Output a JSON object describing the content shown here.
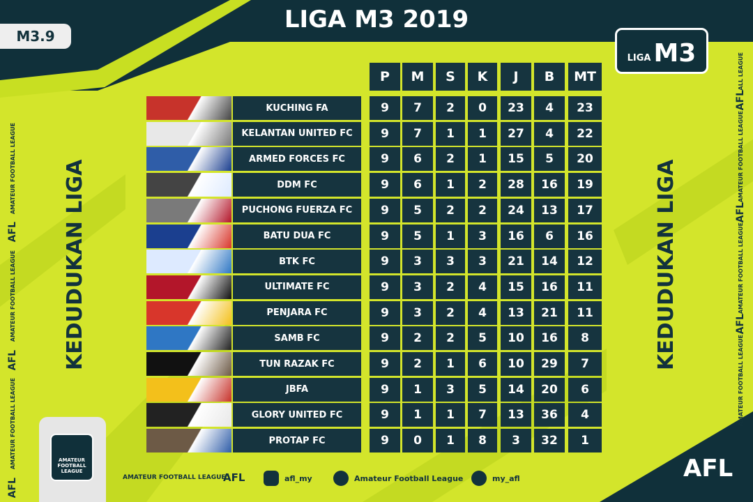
{
  "header": {
    "title": "LIGA M3 2019",
    "badge": "M3.9",
    "logo_small": "LIGA",
    "logo_big": "M3"
  },
  "side_title": "KEDUDUKAN LIGA",
  "left_strip": [
    "AFL",
    "AMATEUR FOOTBALL LEAGUE",
    "AFL",
    "AMATEUR FOOTBALL LEAGUE",
    "AFL",
    "AMATEUR FOOTBALL LEAGUE"
  ],
  "right_strip": [
    "AMATEUR FOOTBALL LEAGUE",
    "AFL",
    "AMATEUR FOOTBALL LEAGUE",
    "AFL",
    "AMATEUR FOOTBALL LEAGUE",
    "AFL",
    "ALL LEAGUE"
  ],
  "table": {
    "columns": [
      "P",
      "M",
      "S",
      "K",
      "J",
      "B",
      "MT"
    ],
    "rows": [
      {
        "team": "KUCHING FA",
        "stats": [
          9,
          7,
          2,
          0,
          23,
          4,
          23
        ]
      },
      {
        "team": "KELANTAN UNITED FC",
        "stats": [
          9,
          7,
          1,
          1,
          27,
          4,
          22
        ]
      },
      {
        "team": "ARMED FORCES FC",
        "stats": [
          9,
          6,
          2,
          1,
          15,
          5,
          20
        ]
      },
      {
        "team": "DDM FC",
        "stats": [
          9,
          6,
          1,
          2,
          28,
          16,
          19
        ]
      },
      {
        "team": "PUCHONG  FUERZA FC",
        "stats": [
          9,
          5,
          2,
          2,
          24,
          13,
          17
        ]
      },
      {
        "team": "BATU  DUA FC",
        "stats": [
          9,
          5,
          1,
          3,
          16,
          6,
          16
        ]
      },
      {
        "team": "BTK FC",
        "stats": [
          9,
          3,
          3,
          3,
          21,
          14,
          12
        ]
      },
      {
        "team": "ULTIMATE  FC",
        "stats": [
          9,
          3,
          2,
          4,
          15,
          16,
          11
        ]
      },
      {
        "team": "PENJARA FC",
        "stats": [
          9,
          3,
          2,
          4,
          13,
          21,
          11
        ]
      },
      {
        "team": "SAMB FC",
        "stats": [
          9,
          2,
          2,
          5,
          10,
          16,
          8
        ]
      },
      {
        "team": "TUN RAZAK FC",
        "stats": [
          9,
          2,
          1,
          6,
          10,
          29,
          7
        ]
      },
      {
        "team": "JBFA",
        "stats": [
          9,
          1,
          3,
          5,
          14,
          20,
          6
        ]
      },
      {
        "team": "GLORY UNITED FC",
        "stats": [
          9,
          1,
          1,
          7,
          13,
          36,
          4
        ]
      },
      {
        "team": "PROTAP FC",
        "stats": [
          9,
          0,
          1,
          8,
          3,
          32,
          1
        ]
      }
    ]
  },
  "footer": {
    "league": "AMATEUR FOOTBALL LEAGUE",
    "league_short": "AFL",
    "instagram": "afl_my",
    "facebook": "Amateur Football League",
    "twitter": "my_afl",
    "corner": "AFL",
    "logo_text": "AMATEUR FOOTBALL LEAGUE"
  }
}
